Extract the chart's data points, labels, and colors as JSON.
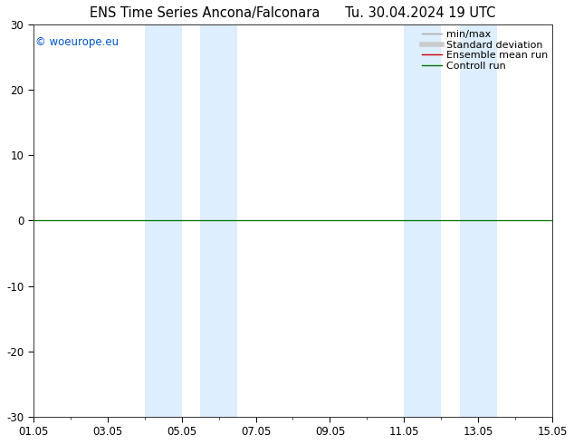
{
  "title_left": "ENS Time Series Ancona/Falconara",
  "title_right": "Tu. 30.04.2024 19 UTC",
  "ylim": [
    -30,
    30
  ],
  "yticks": [
    -30,
    -20,
    -10,
    0,
    10,
    20,
    30
  ],
  "ytick_labels": [
    "-30",
    "-20",
    "-10",
    "0",
    "10",
    "20",
    "30"
  ],
  "xlim": [
    0,
    14
  ],
  "xtick_positions": [
    0,
    2,
    4,
    6,
    8,
    10,
    12,
    14
  ],
  "xtick_labels": [
    "01.05",
    "03.05",
    "05.05",
    "07.05",
    "09.05",
    "11.05",
    "13.05",
    "15.05"
  ],
  "shaded_bands": [
    {
      "xmin": 3.0,
      "xmax": 4.0,
      "color": "#ddeeff"
    },
    {
      "xmin": 4.5,
      "xmax": 5.5,
      "color": "#ddeeff"
    },
    {
      "xmin": 10.0,
      "xmax": 11.0,
      "color": "#ddeeff"
    },
    {
      "xmin": 11.5,
      "xmax": 12.5,
      "color": "#ddeeff"
    }
  ],
  "zero_line_color": "#000000",
  "green_line_color": "#007700",
  "background_color": "#ffffff",
  "plot_bg_color": "#ffffff",
  "watermark_text": "© woeurope.eu",
  "watermark_color": "#0055cc",
  "legend_entries": [
    {
      "label": "min/max",
      "color": "#aaaaaa",
      "lw": 1.0
    },
    {
      "label": "Standard deviation",
      "color": "#cccccc",
      "lw": 4.0
    },
    {
      "label": "Ensemble mean run",
      "color": "#cc0000",
      "lw": 1.0
    },
    {
      "label": "Controll run",
      "color": "#007700",
      "lw": 1.0
    }
  ],
  "title_fontsize": 10.5,
  "tick_fontsize": 8.5,
  "legend_fontsize": 8.0,
  "watermark_fontsize": 8.5
}
